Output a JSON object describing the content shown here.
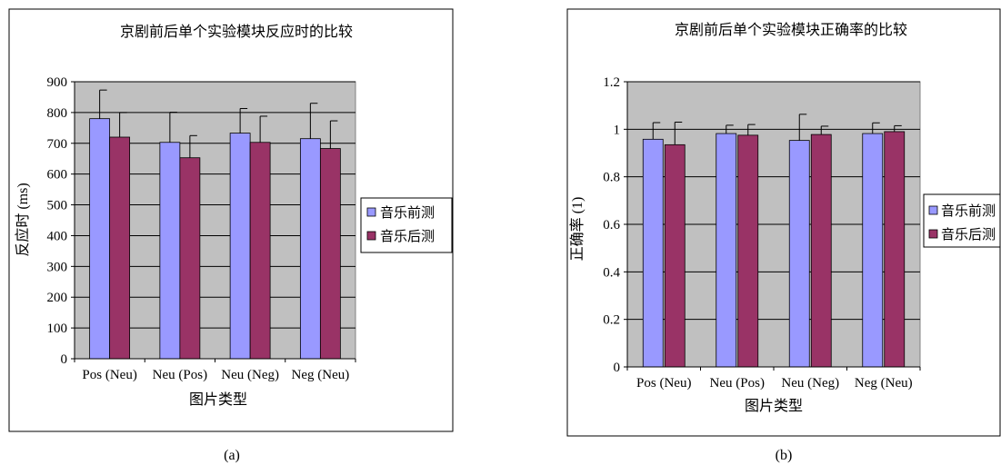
{
  "legend_swatch_colors": [
    "#9999FF",
    "#993366"
  ],
  "chart_data": [
    {
      "type": "bar",
      "title": "京剧前后单个实验模块反应时的比较",
      "xlabel": "图片类型",
      "ylabel": "反应时 (ms)",
      "categories": [
        "Pos (Neu)",
        "Neu (Pos)",
        "Neu (Neg)",
        "Neg (Neu)"
      ],
      "series": [
        {
          "name": "音乐前测",
          "color": "#9999FF",
          "values": [
            780,
            703,
            733,
            715
          ],
          "error": [
            93,
            98,
            80,
            115
          ]
        },
        {
          "name": "音乐后测",
          "color": "#993366",
          "values": [
            720,
            653,
            703,
            683
          ],
          "error": [
            80,
            72,
            85,
            90
          ]
        }
      ],
      "ylim": [
        0,
        900
      ],
      "yticks": [
        "0",
        "100",
        "200",
        "300",
        "400",
        "500",
        "600",
        "700",
        "800",
        "900"
      ],
      "grid": true,
      "plot_background": "#C0C0C0",
      "legend_position": "right",
      "panel_label": "(a)"
    },
    {
      "type": "bar",
      "title": "京剧前后单个实验模块正确率的比较",
      "xlabel": "图片类型",
      "ylabel": "正确率 (1)",
      "categories": [
        "Pos (Neu)",
        "Neu (Pos)",
        "Neu (Neg)",
        "Neg (Neu)"
      ],
      "series": [
        {
          "name": "音乐前测",
          "color": "#9999FF",
          "values": [
            0.958,
            0.982,
            0.953,
            0.982
          ],
          "error": [
            0.07,
            0.035,
            0.11,
            0.045
          ]
        },
        {
          "name": "音乐后测",
          "color": "#993366",
          "values": [
            0.935,
            0.975,
            0.978,
            0.99
          ],
          "error": [
            0.095,
            0.045,
            0.035,
            0.025
          ]
        }
      ],
      "ylim": [
        0,
        1.2
      ],
      "yticks": [
        "0",
        "0.2",
        "0.4",
        "0.6",
        "0.8",
        "1",
        "1.2"
      ],
      "grid": true,
      "plot_background": "#C0C0C0",
      "legend_position": "right",
      "panel_label": "(b)"
    }
  ]
}
